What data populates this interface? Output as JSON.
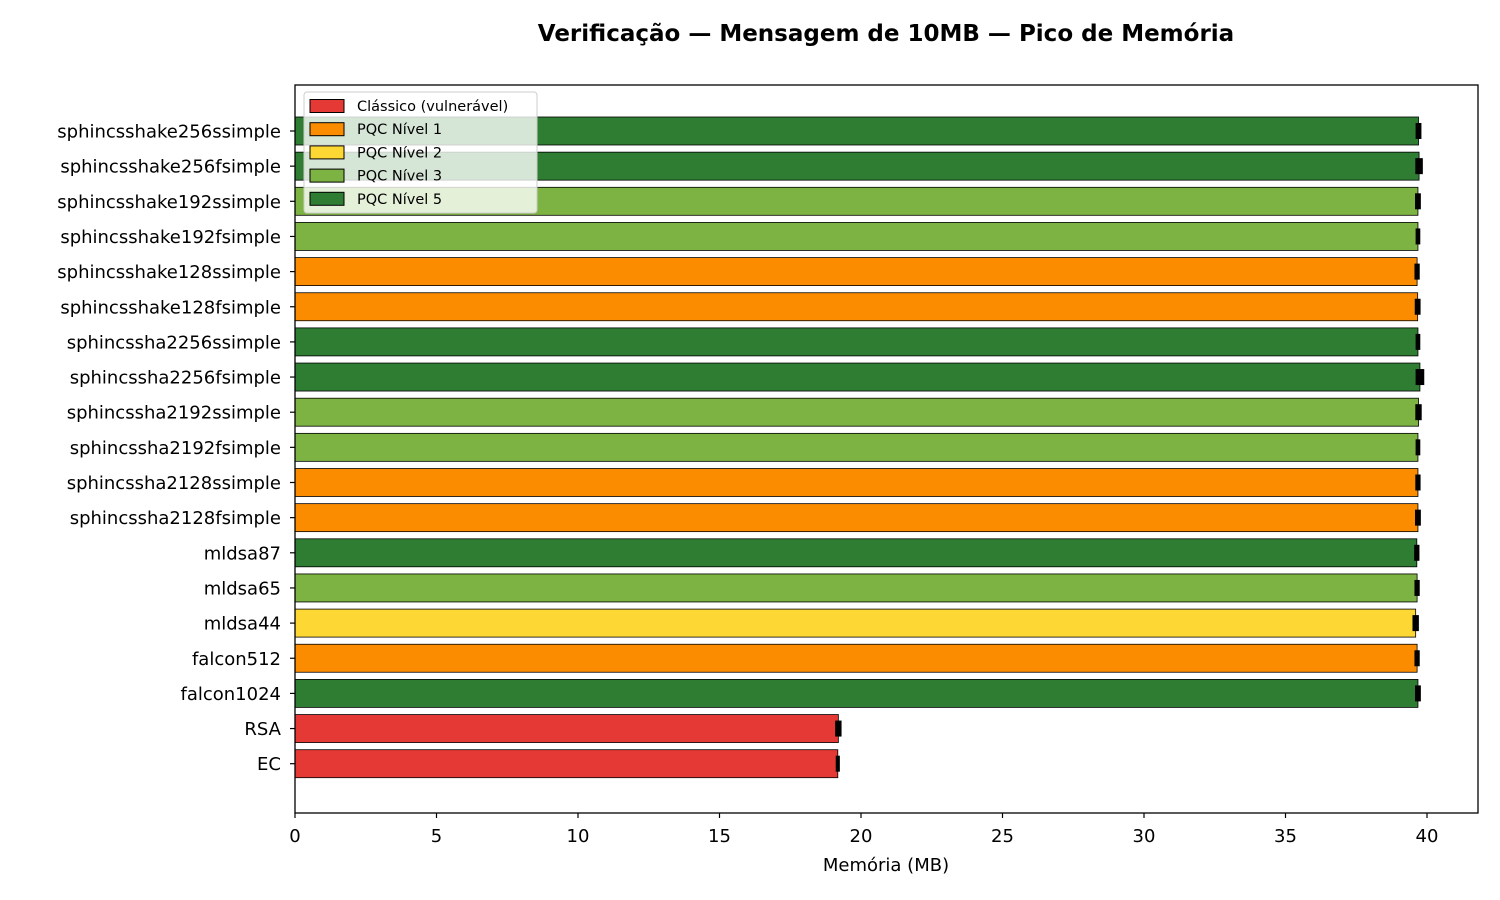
{
  "chart_data": {
    "type": "bar",
    "orientation": "horizontal",
    "title": "Verificação — Mensagem de 10MB — Pico de Memória",
    "xlabel": "Memória (MB)",
    "ylabel": "",
    "xlim": [
      0,
      41.8
    ],
    "xticks": [
      0,
      5,
      10,
      15,
      20,
      25,
      30,
      35,
      40
    ],
    "grid": false,
    "legend_position": "top-left",
    "categories": [
      "sphincsshake256ssimple",
      "sphincsshake256fsimple",
      "sphincsshake192ssimple",
      "sphincsshake192fsimple",
      "sphincsshake128ssimple",
      "sphincsshake128fsimple",
      "sphincssha2256ssimple",
      "sphincssha2256fsimple",
      "sphincssha2192ssimple",
      "sphincssha2192fsimple",
      "sphincssha2128ssimple",
      "sphincssha2128fsimple",
      "mldsa87",
      "mldsa65",
      "mldsa44",
      "falcon512",
      "falcon1024",
      "RSA",
      "EC"
    ],
    "values": [
      39.7,
      39.72,
      39.68,
      39.68,
      39.65,
      39.67,
      39.68,
      39.75,
      39.7,
      39.68,
      39.68,
      39.68,
      39.64,
      39.65,
      39.6,
      39.65,
      39.68,
      19.2,
      19.18
    ],
    "errors": [
      0.05,
      0.08,
      0.05,
      0.03,
      0.04,
      0.05,
      0.03,
      0.1,
      0.06,
      0.03,
      0.04,
      0.05,
      0.04,
      0.04,
      0.06,
      0.04,
      0.05,
      0.06,
      0.02
    ],
    "bar_groups": [
      "n5",
      "n5",
      "n3",
      "n3",
      "n1",
      "n1",
      "n5",
      "n5",
      "n3",
      "n3",
      "n1",
      "n1",
      "n5",
      "n3",
      "n2",
      "n1",
      "n5",
      "classic",
      "classic"
    ],
    "legend": [
      {
        "key": "classic",
        "label": "Clássico (vulnerável)",
        "color": "#e53935"
      },
      {
        "key": "n1",
        "label": "PQC Nível 1",
        "color": "#fb8c00"
      },
      {
        "key": "n2",
        "label": "PQC Nível 2",
        "color": "#fdd835"
      },
      {
        "key": "n3",
        "label": "PQC Nível 3",
        "color": "#7cb342"
      },
      {
        "key": "n5",
        "label": "PQC Nível 5",
        "color": "#2e7d32"
      }
    ]
  }
}
